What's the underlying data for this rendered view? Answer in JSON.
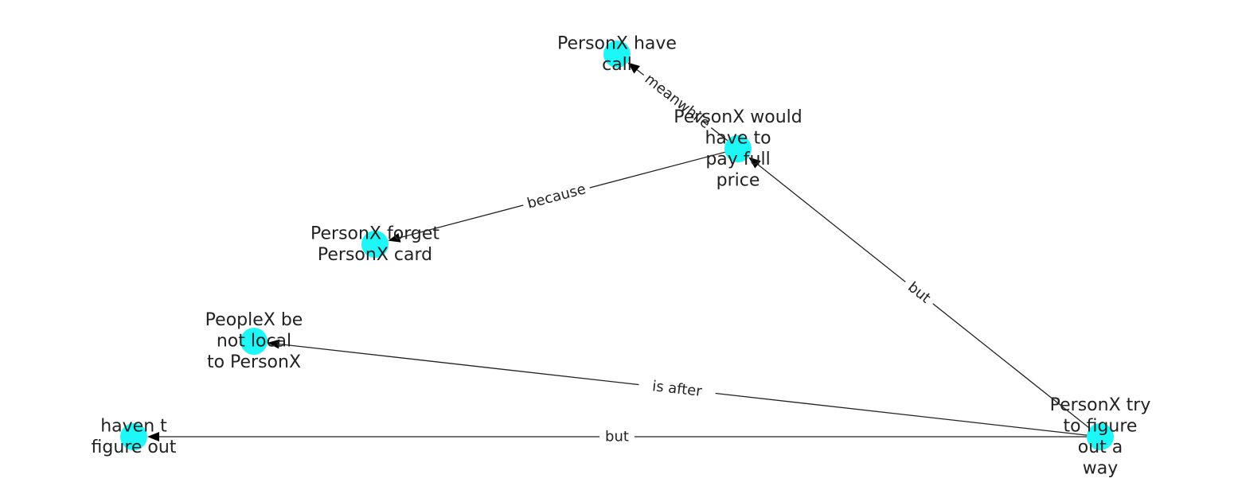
{
  "graph": {
    "node_color": "#1ef7f7",
    "edge_color": "#222222",
    "nodes": [
      {
        "id": "call",
        "label": [
          "PersonX have",
          "call"
        ]
      },
      {
        "id": "pay",
        "label": [
          "PersonX would",
          "have to",
          "pay full",
          "price"
        ]
      },
      {
        "id": "forget",
        "label": [
          "PersonX forget",
          "PersonX card"
        ]
      },
      {
        "id": "local",
        "label": [
          "PeopleX be",
          "not local",
          "to PersonX"
        ]
      },
      {
        "id": "haven",
        "label": [
          "haven t",
          "figure out"
        ]
      },
      {
        "id": "try",
        "label": [
          "PersonX try",
          "to figure",
          "out a",
          "way"
        ]
      }
    ],
    "edges": [
      {
        "from": "pay",
        "to": "call",
        "label": "meanwhile"
      },
      {
        "from": "pay",
        "to": "forget",
        "label": "because"
      },
      {
        "from": "try",
        "to": "pay",
        "label": "but"
      },
      {
        "from": "try",
        "to": "local",
        "label": "is after"
      },
      {
        "from": "try",
        "to": "haven",
        "label": "but"
      }
    ]
  }
}
